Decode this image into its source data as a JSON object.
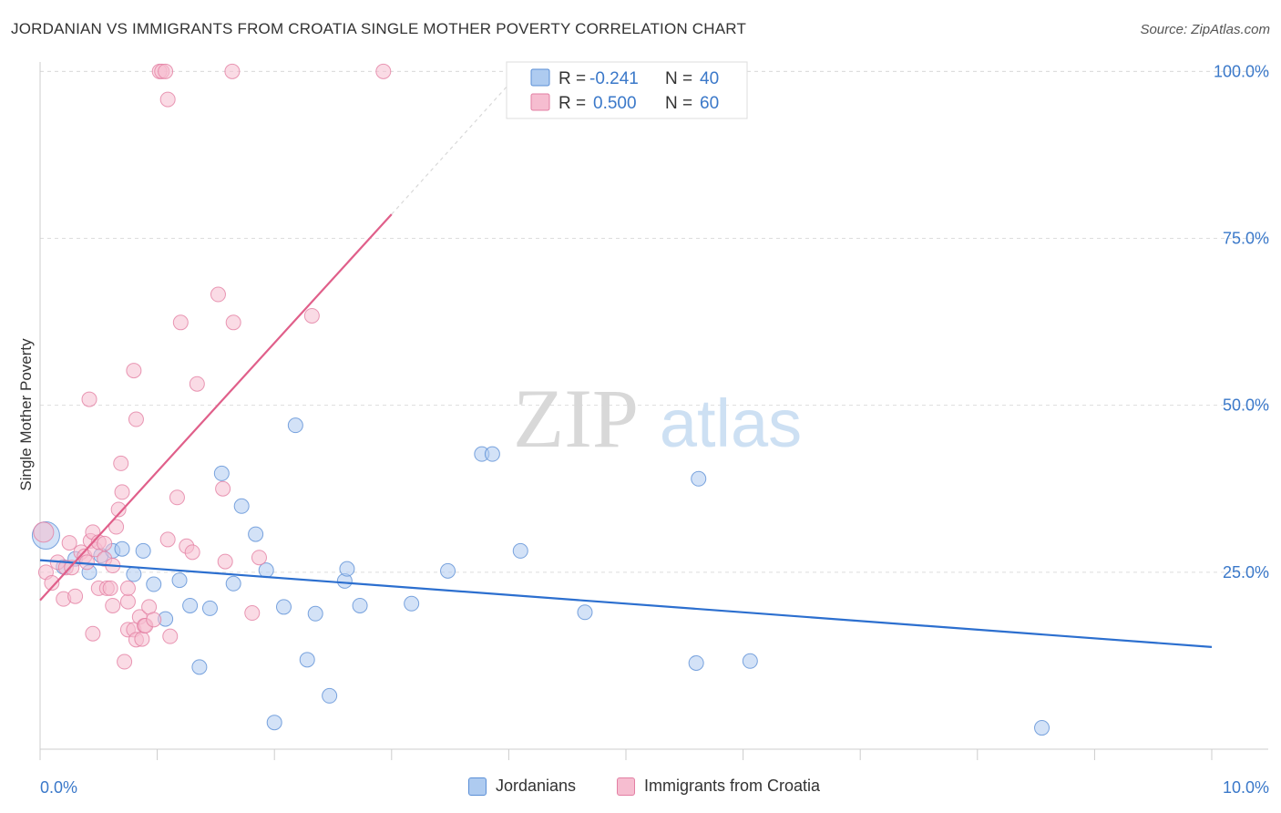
{
  "title": "JORDANIAN VS IMMIGRANTS FROM CROATIA SINGLE MOTHER POVERTY CORRELATION CHART",
  "source": "Source: ZipAtlas.com",
  "watermark": {
    "zip": "ZIP",
    "atlas": "atlas"
  },
  "colors": {
    "jordanians_fill": "#aecbf0",
    "jordanians_stroke": "#5b8fd6",
    "jordanians_line": "#2c6fcf",
    "croatia_fill": "#f6bdd0",
    "croatia_stroke": "#e37fa3",
    "croatia_line": "#e05f8a",
    "axis_label": "#3a78c9",
    "grid": "#dddddd"
  },
  "stats_box": {
    "r_label": "R =",
    "n_label": "N =",
    "rows": [
      {
        "r": "-0.241",
        "n": "40"
      },
      {
        "r": "0.500",
        "n": "60"
      }
    ]
  },
  "bottom_legend": {
    "series1": "Jordanians",
    "series2": "Immigrants from Croatia"
  },
  "chart_data": {
    "type": "scatter",
    "title": "JORDANIAN VS IMMIGRANTS FROM CROATIA SINGLE MOTHER POVERTY CORRELATION CHART",
    "xlabel": "",
    "ylabel": "Single Mother Poverty",
    "xlim": [
      0,
      10
    ],
    "ylim": [
      -1.5,
      102.5
    ],
    "x_tick_labels": [
      {
        "value": 0,
        "label": "0.0%"
      },
      {
        "value": 10,
        "label": "10.0%"
      }
    ],
    "y_tick_labels": [
      {
        "value": 25,
        "label": "25.0%"
      },
      {
        "value": 50,
        "label": "50.0%"
      },
      {
        "value": 75,
        "label": "75.0%"
      },
      {
        "value": 100,
        "label": "100.0%"
      }
    ],
    "x_minor_ticks": [
      0,
      1,
      2,
      3,
      4,
      5,
      6,
      7,
      8,
      9,
      10
    ],
    "series": [
      {
        "name": "Jordanians",
        "r": -0.241,
        "n": 40,
        "trend": {
          "x0": 0,
          "y0": 26.8,
          "x1": 10,
          "y1": 13.8
        },
        "points": [
          [
            0.05,
            30.5,
            15
          ],
          [
            0.2,
            25.8,
            8
          ],
          [
            0.3,
            27.0,
            8
          ],
          [
            0.42,
            25.0,
            8
          ],
          [
            0.52,
            27.5,
            8
          ],
          [
            0.62,
            28.2,
            8
          ],
          [
            0.7,
            28.5,
            8
          ],
          [
            0.8,
            24.7,
            8
          ],
          [
            0.88,
            28.2,
            8
          ],
          [
            0.97,
            23.2,
            8
          ],
          [
            1.07,
            18.0,
            8
          ],
          [
            1.19,
            23.8,
            8
          ],
          [
            1.28,
            20.0,
            8
          ],
          [
            1.36,
            10.8,
            8
          ],
          [
            1.45,
            19.6,
            8
          ],
          [
            1.55,
            39.8,
            8
          ],
          [
            1.65,
            23.3,
            8
          ],
          [
            1.72,
            34.9,
            8
          ],
          [
            1.84,
            30.7,
            8
          ],
          [
            1.93,
            25.3,
            8
          ],
          [
            2.0,
            2.5,
            8
          ],
          [
            2.08,
            19.8,
            8
          ],
          [
            2.18,
            47.0,
            8
          ],
          [
            2.28,
            11.9,
            8
          ],
          [
            2.35,
            18.8,
            8
          ],
          [
            2.47,
            6.5,
            8
          ],
          [
            2.6,
            23.7,
            8
          ],
          [
            2.62,
            25.5,
            8
          ],
          [
            2.73,
            20.0,
            8
          ],
          [
            3.17,
            20.3,
            8
          ],
          [
            3.48,
            25.2,
            8
          ],
          [
            3.77,
            42.7,
            8
          ],
          [
            3.86,
            42.7,
            8
          ],
          [
            4.1,
            28.2,
            8
          ],
          [
            4.65,
            19.0,
            8
          ],
          [
            5.6,
            11.4,
            8
          ],
          [
            5.62,
            39.0,
            8
          ],
          [
            6.06,
            11.7,
            8
          ],
          [
            8.55,
            1.7,
            8
          ]
        ]
      },
      {
        "name": "Immigrants from Croatia",
        "r": 0.5,
        "n": 60,
        "trend": {
          "x0": 0,
          "y0": 20.8,
          "x1": 3.0,
          "y1": 78.6
        },
        "trend_dashed": {
          "x0": 3.0,
          "y0": 78.6,
          "x1": 4.1,
          "y1": 100.0
        },
        "points": [
          [
            0.03,
            31.0,
            11
          ],
          [
            0.05,
            25.0,
            8
          ],
          [
            0.1,
            23.4,
            8
          ],
          [
            0.15,
            26.5,
            8
          ],
          [
            0.2,
            21.0,
            8
          ],
          [
            0.22,
            25.7,
            8
          ],
          [
            0.25,
            29.4,
            8
          ],
          [
            0.27,
            25.7,
            8
          ],
          [
            0.3,
            21.4,
            8
          ],
          [
            0.35,
            28.0,
            8
          ],
          [
            0.38,
            27.4,
            8
          ],
          [
            0.4,
            26.5,
            8
          ],
          [
            0.43,
            29.7,
            8
          ],
          [
            0.45,
            31.0,
            8
          ],
          [
            0.47,
            28.4,
            8
          ],
          [
            0.5,
            29.5,
            8
          ],
          [
            0.42,
            50.9,
            8
          ],
          [
            0.45,
            15.8,
            8
          ],
          [
            0.5,
            22.6,
            8
          ],
          [
            0.55,
            29.3,
            8
          ],
          [
            0.57,
            22.6,
            8
          ],
          [
            0.6,
            22.6,
            8
          ],
          [
            0.55,
            27.0,
            8
          ],
          [
            0.62,
            20.0,
            8
          ],
          [
            0.62,
            26.0,
            8
          ],
          [
            0.65,
            31.8,
            8
          ],
          [
            0.67,
            34.4,
            8
          ],
          [
            0.69,
            41.3,
            8
          ],
          [
            0.7,
            37.0,
            8
          ],
          [
            0.72,
            11.6,
            8
          ],
          [
            0.75,
            20.6,
            8
          ],
          [
            0.75,
            16.4,
            8
          ],
          [
            0.75,
            22.6,
            8
          ],
          [
            0.8,
            55.2,
            8
          ],
          [
            0.82,
            47.9,
            8
          ],
          [
            0.8,
            16.4,
            8
          ],
          [
            0.82,
            14.9,
            8
          ],
          [
            0.85,
            18.3,
            8
          ],
          [
            0.87,
            15.0,
            8
          ],
          [
            0.89,
            17.0,
            8
          ],
          [
            0.9,
            17.0,
            8
          ],
          [
            0.93,
            19.8,
            8
          ],
          [
            0.97,
            17.9,
            8
          ],
          [
            1.02,
            100.0,
            8
          ],
          [
            1.04,
            100.0,
            8
          ],
          [
            1.07,
            100.0,
            8
          ],
          [
            1.09,
            29.9,
            8
          ],
          [
            1.09,
            95.8,
            8
          ],
          [
            1.11,
            15.4,
            8
          ],
          [
            1.17,
            36.2,
            8
          ],
          [
            1.2,
            62.4,
            8
          ],
          [
            1.25,
            28.9,
            8
          ],
          [
            1.3,
            28.0,
            8
          ],
          [
            1.34,
            53.2,
            8
          ],
          [
            1.52,
            66.6,
            8
          ],
          [
            1.56,
            37.5,
            8
          ],
          [
            1.58,
            26.6,
            8
          ],
          [
            1.65,
            62.4,
            8
          ],
          [
            1.81,
            18.9,
            8
          ],
          [
            1.87,
            27.2,
            8
          ],
          [
            1.64,
            100.0,
            8
          ],
          [
            2.32,
            63.4,
            8
          ],
          [
            2.93,
            100.0,
            8
          ]
        ]
      }
    ]
  }
}
